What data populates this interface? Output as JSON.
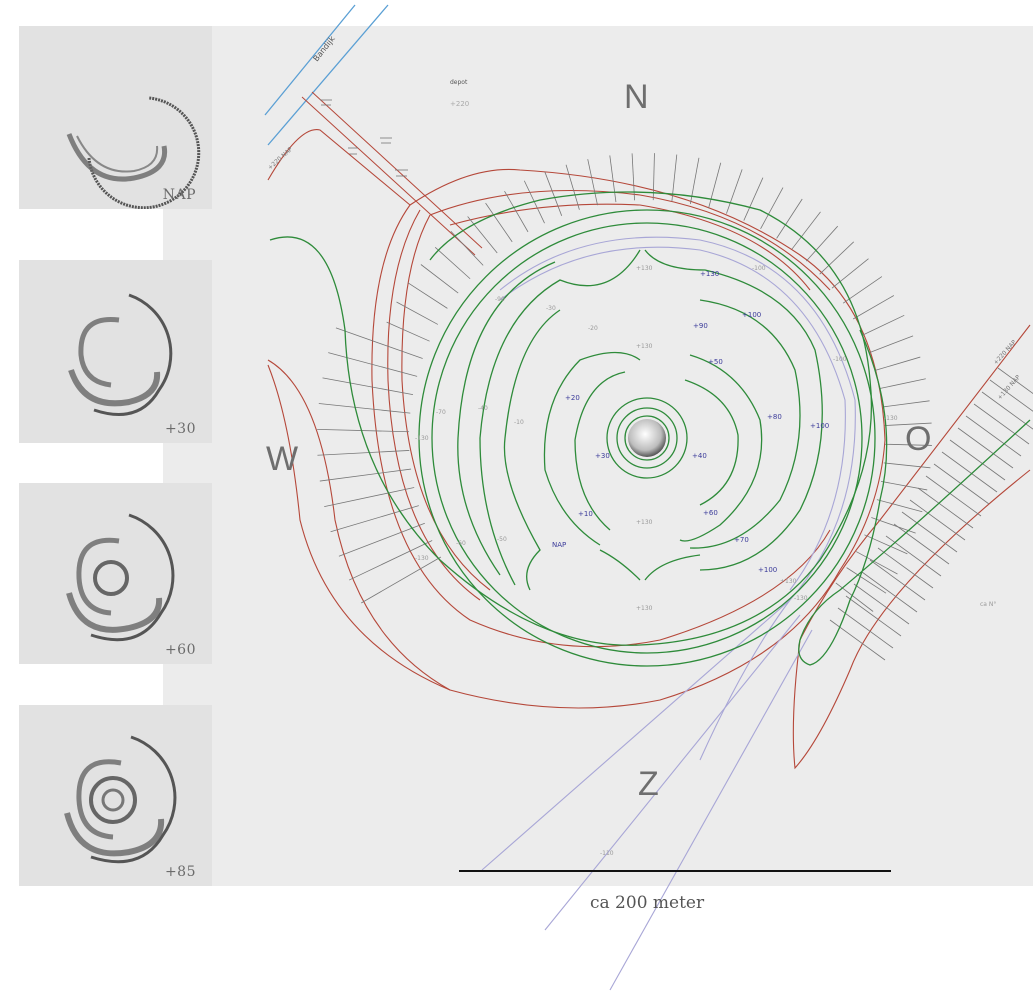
{
  "thumbnails": [
    {
      "label": "NAP"
    },
    {
      "label": "+30"
    },
    {
      "label": "+60"
    },
    {
      "label": "+85"
    }
  ],
  "compass": {
    "north": "N",
    "south": "Z",
    "west": "W",
    "east": "O"
  },
  "scale": {
    "label": "ca 200 meter"
  },
  "map_labels": {
    "dike": "Bandijk",
    "depot": "depot",
    "depot_level": "+220",
    "nw_level": "+220 NAP",
    "ne_level": "+220 NAP",
    "e_level": "+130 NAP",
    "far_east": "ca N°"
  },
  "contour_labels_blue": [
    "+90",
    "+100",
    "+130",
    "+20",
    "+50",
    "+80",
    "+100",
    "+30",
    "+40",
    "+10",
    "+60",
    "+70",
    "+100",
    "NAP"
  ],
  "contour_labels_grey": [
    "-30",
    "-20",
    "-10",
    "-40",
    "-70",
    "-60",
    "-50",
    "+130",
    "+130",
    "+130",
    "+130",
    "-130",
    "-130",
    "-100",
    "-100",
    "-90",
    "+130",
    "-130",
    "-130",
    "-110"
  ],
  "colors": {
    "panel": "#ececec",
    "green": "#2e8b3a",
    "red": "#b5483a",
    "violet": "#a8a6d6",
    "blue": "#5a9fd4",
    "label_blue": "#3b3b9a"
  }
}
